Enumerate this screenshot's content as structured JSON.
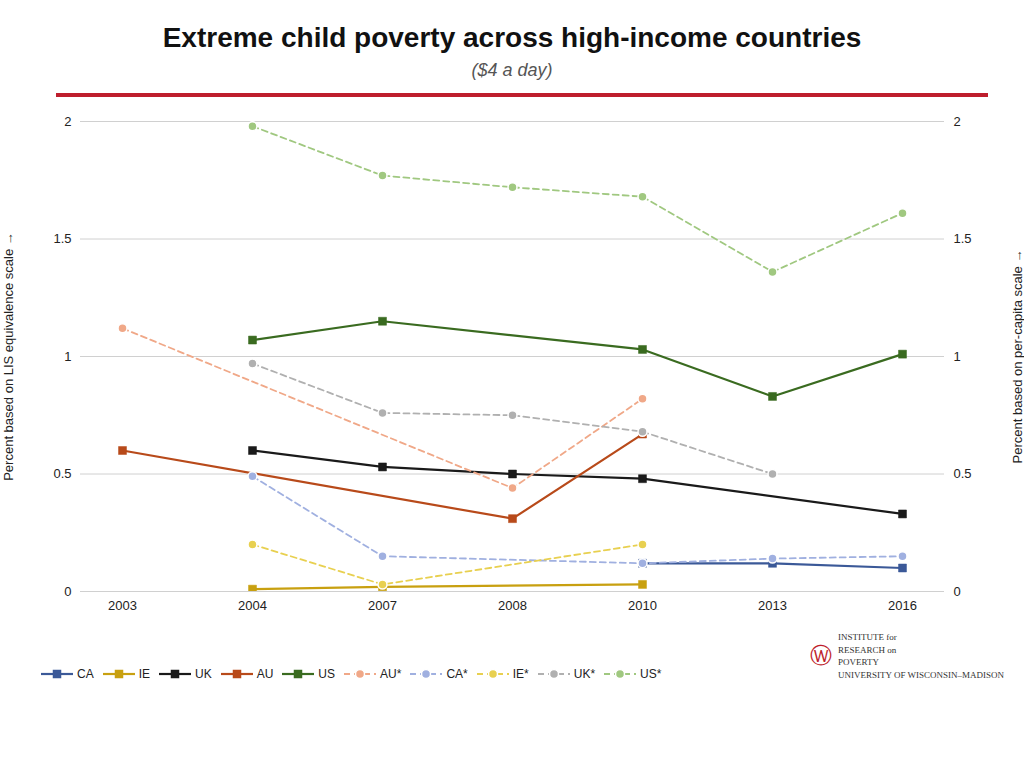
{
  "chart_data": {
    "type": "line",
    "title": "Extreme child poverty across high-income countries",
    "subtitle": "($4 a day)",
    "ylabel": "Percent based on LIS equivalence scale",
    "y2label": "Percent based on per-capita scale",
    "categories": [
      "2003",
      "2004",
      "2007",
      "2008",
      "2010",
      "2013",
      "2016"
    ],
    "series": [
      {
        "name": "CA",
        "color": "#3b5998",
        "marker": "square",
        "line_style": "solid",
        "values": [
          null,
          null,
          null,
          null,
          0.12,
          0.12,
          0.1
        ]
      },
      {
        "name": "IE",
        "color": "#c8a010",
        "marker": "square",
        "line_style": "solid",
        "values": [
          null,
          0.01,
          0.02,
          null,
          0.03,
          null,
          null
        ]
      },
      {
        "name": "UK",
        "color": "#1a1a1a",
        "marker": "square",
        "line_style": "solid",
        "values": [
          null,
          0.6,
          0.53,
          0.5,
          0.48,
          null,
          0.33
        ]
      },
      {
        "name": "AU",
        "color": "#b84a1a",
        "marker": "square",
        "line_style": "solid",
        "values": [
          0.6,
          null,
          null,
          0.31,
          0.67,
          null,
          null
        ]
      },
      {
        "name": "US",
        "color": "#3a6b20",
        "marker": "square",
        "line_style": "solid",
        "values": [
          null,
          1.07,
          1.15,
          null,
          1.03,
          0.83,
          1.01
        ]
      },
      {
        "name": "AU*",
        "color": "#f0a888",
        "marker": "circle",
        "line_style": "dashed",
        "values": [
          1.12,
          null,
          null,
          0.44,
          0.82,
          null,
          null
        ]
      },
      {
        "name": "CA*",
        "color": "#a0b0e0",
        "marker": "circle",
        "line_style": "dashed",
        "values": [
          null,
          0.49,
          0.15,
          null,
          0.12,
          0.14,
          0.15
        ]
      },
      {
        "name": "IE*",
        "color": "#e8d050",
        "marker": "circle",
        "line_style": "dashed",
        "values": [
          null,
          0.2,
          0.03,
          null,
          0.2,
          null,
          null
        ]
      },
      {
        "name": "UK*",
        "color": "#b0b0b0",
        "marker": "circle",
        "line_style": "dashed",
        "values": [
          null,
          0.97,
          0.76,
          0.75,
          0.68,
          0.5,
          null
        ]
      },
      {
        "name": "US*",
        "color": "#a0c880",
        "marker": "circle",
        "line_style": "dashed",
        "values": [
          null,
          1.98,
          1.77,
          1.72,
          1.68,
          1.36,
          1.61
        ]
      }
    ],
    "ylim": [
      0,
      2
    ],
    "yticks": [
      0,
      0.5,
      1,
      1.5,
      2
    ],
    "y2lim": [
      0,
      2
    ],
    "y2ticks": [
      0,
      0.5,
      1,
      1.5,
      2
    ],
    "grid": true,
    "legend": "bottom",
    "annotations": [
      "INSTITUTE for\nRESEARCH on\nPOVERTY\nUNIVERSITY OF WISCONSIN–MADISON",
      "Ⓦ"
    ]
  }
}
